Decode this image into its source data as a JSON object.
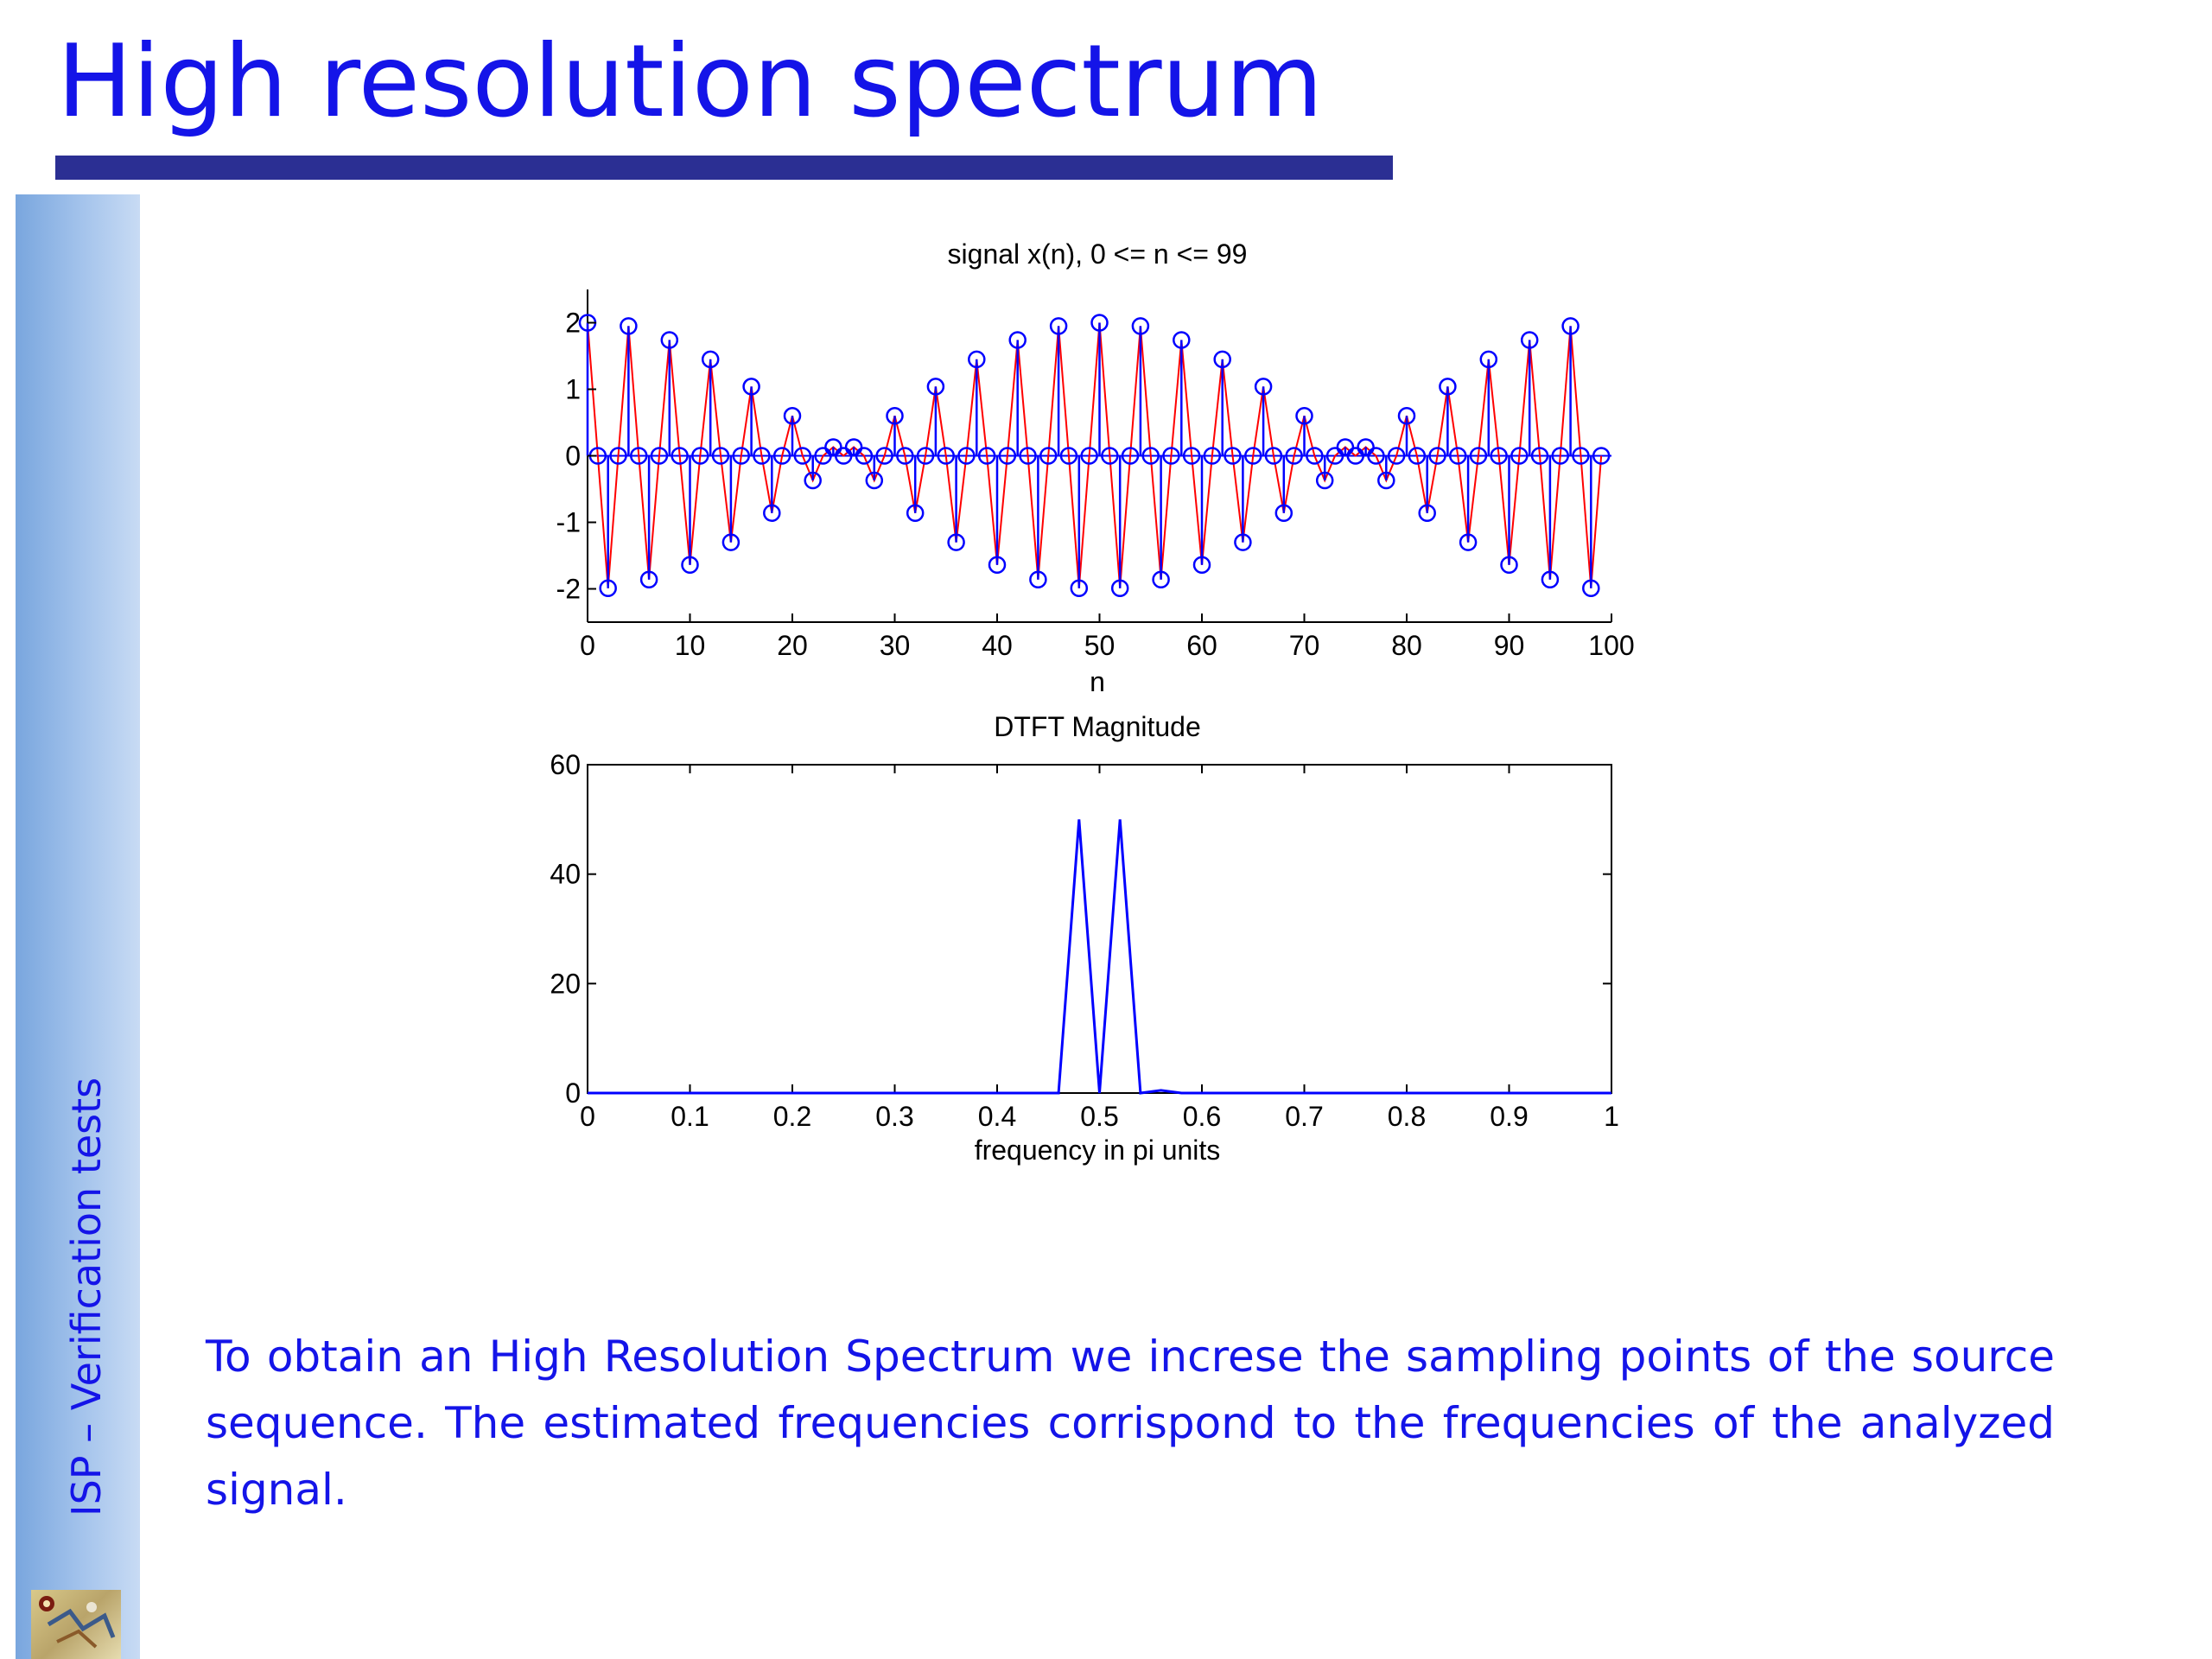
{
  "slide": {
    "title": "High resolution spectrum",
    "sidebar_label": "ISP – Verification tests",
    "caption": "To obtain an High Resolution Spectrum we increse the sampling points of the source sequence. The estimated frequencies corrispond to the frequencies of the analyzed signal."
  },
  "colors": {
    "title": "#1414e8",
    "rule": "#2b2f93",
    "stem_marker": "#0000ff",
    "signal_line": "#ff0000",
    "spectrum_line": "#0000ff"
  },
  "chart_data": [
    {
      "type": "line",
      "title": "signal x(n), 0 <= n <= 99",
      "xlabel": "n",
      "ylabel": "",
      "xlim": [
        0,
        100
      ],
      "ylim": [
        -2.5,
        2.5
      ],
      "xticks": [
        0,
        10,
        20,
        30,
        40,
        50,
        60,
        70,
        80,
        90,
        100
      ],
      "yticks": [
        -2,
        -1,
        0,
        1,
        2
      ],
      "ytick_labels": [
        "-2",
        "-1",
        "0",
        "1",
        "2"
      ],
      "grid": false,
      "markers": "stem with open circles",
      "x": [
        0,
        2,
        4,
        6,
        8,
        10,
        12,
        14,
        16,
        18,
        20,
        22,
        24,
        26,
        28,
        30,
        32,
        34,
        36,
        38,
        40,
        42,
        44,
        46,
        48,
        50,
        52,
        54,
        56,
        58,
        60,
        62,
        64,
        66,
        68,
        70,
        72,
        74,
        76,
        78,
        80,
        82,
        84,
        86,
        88,
        90,
        92,
        94,
        96,
        98
      ],
      "y": [
        2,
        -1.99,
        1.95,
        -1.86,
        1.74,
        -1.64,
        1.45,
        -1.3,
        1.04,
        -0.86,
        0.6,
        -0.37,
        0.13,
        0.13,
        -0.37,
        0.6,
        -0.86,
        1.04,
        -1.3,
        1.45,
        -1.64,
        1.74,
        -1.86,
        1.95,
        -1.99,
        2,
        -1.99,
        1.95,
        -1.86,
        1.74,
        -1.64,
        1.45,
        -1.3,
        1.04,
        -0.86,
        0.6,
        -0.37,
        0.13,
        0.13,
        -0.37,
        0.6,
        -0.86,
        1.04,
        -1.3,
        1.45,
        -1.64,
        1.74,
        -1.86,
        1.95,
        -1.99
      ],
      "odd_samples_value": 0,
      "last_sample": [
        99,
        0
      ]
    },
    {
      "type": "line",
      "title": "DTFT Magnitude",
      "xlabel": "frequency in pi units",
      "ylabel": "",
      "xlim": [
        0,
        1
      ],
      "ylim": [
        0,
        60
      ],
      "xticks": [
        0,
        0.1,
        0.2,
        0.3,
        0.4,
        0.5,
        0.6,
        0.7,
        0.8,
        0.9,
        1
      ],
      "xtick_labels": [
        "0",
        "0.1",
        "0.2",
        "0.3",
        "0.4",
        "0.5",
        "0.6",
        "0.7",
        "0.8",
        "0.9",
        "1"
      ],
      "yticks": [
        0,
        20,
        40,
        60
      ],
      "grid": false,
      "x": [
        0,
        0.46,
        0.48,
        0.5,
        0.52,
        0.54,
        0.56,
        0.58,
        1.0
      ],
      "y": [
        0,
        0,
        50,
        0,
        50,
        0,
        0.5,
        0,
        0
      ]
    }
  ]
}
